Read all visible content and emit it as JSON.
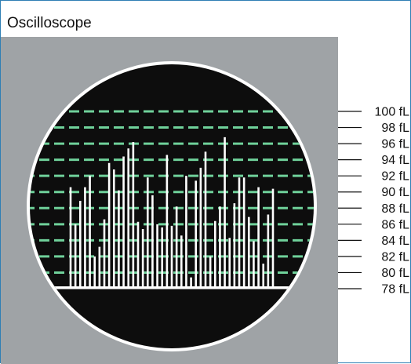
{
  "window": {
    "title": "Oscilloscope"
  },
  "colors": {
    "panel": "#9fa3a6",
    "screen": "#0d0d0d",
    "bezel": "#ffffff",
    "gridline": "#6fd19a",
    "pulse": "#ffffff",
    "accent_border": "#2f7fb4"
  },
  "scale": {
    "labels": [
      "100 fL",
      "98 fL",
      "96 fL",
      "94 fL",
      "92 fL",
      "90 fL",
      "88 fL",
      "86 fL",
      "84 fL",
      "82 fL",
      "80 fL",
      "78 fL"
    ]
  },
  "chart_data": {
    "type": "bar",
    "ylim": [
      78,
      100
    ],
    "values": [
      90.6,
      86.0,
      88.9,
      90.6,
      92.0,
      82.0,
      83.2,
      86.6,
      93.6,
      92.8,
      90.2,
      94.4,
      95.4,
      96.2,
      86.3,
      85.4,
      91.8,
      89.6,
      86.0,
      85.6,
      94.6,
      85.8,
      88.2,
      84.6,
      92.0,
      79.4,
      91.4,
      93.0,
      95.0,
      82.0,
      86.4,
      88.2,
      96.8,
      84.3,
      88.6,
      91.8,
      91.8,
      86.9,
      83.9,
      90.6,
      81.1,
      87.2,
      90.4
    ]
  }
}
